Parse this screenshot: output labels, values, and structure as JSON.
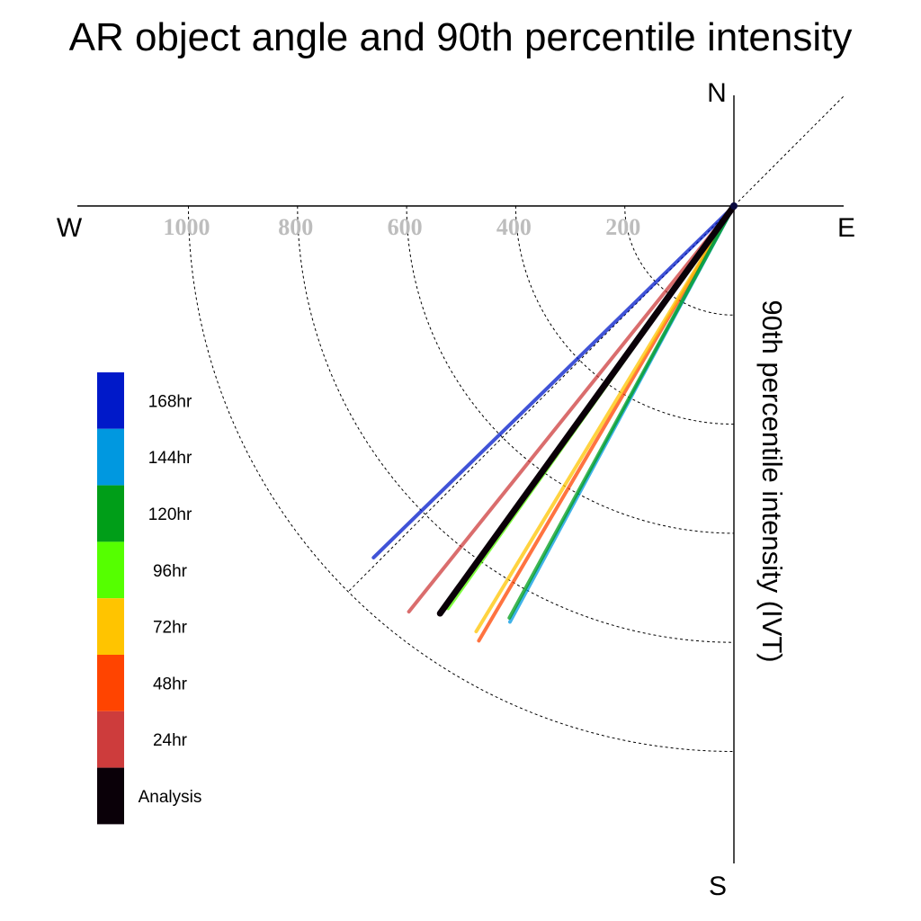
{
  "chart_data": {
    "type": "polar-vector",
    "title": "AR object angle and 90th percentile intensity",
    "radial_label": "90th percentile intensity (IVT)",
    "compass_labels": {
      "north": "N",
      "south": "S",
      "east": "E",
      "west": "W"
    },
    "radial_ticks": [
      200,
      400,
      600,
      800,
      1000
    ],
    "radial_max": 1200,
    "grid": true,
    "series": [
      {
        "name": "168hr",
        "color": "#0019c9",
        "intensity": 923,
        "angle_deg": 225.7
      },
      {
        "name": "144hr",
        "color": "#0098e0",
        "intensity": 866,
        "angle_deg": 208.3
      },
      {
        "name": "120hr",
        "color": "#009e18",
        "intensity": 860,
        "angle_deg": 208.6
      },
      {
        "name": "96hr",
        "color": "#55ff00",
        "intensity": 905,
        "angle_deg": 215.4
      },
      {
        "name": "72hr",
        "color": "#ffc400",
        "intensity": 912,
        "angle_deg": 211.2
      },
      {
        "name": "48hr",
        "color": "#ff4400",
        "intensity": 924,
        "angle_deg": 210.4
      },
      {
        "name": "24hr",
        "color": "#cd3c3c",
        "intensity": 953,
        "angle_deg": 218.7
      },
      {
        "name": "Analysis",
        "color": "#0a0008",
        "intensity": 921,
        "angle_deg": 215.8
      }
    ]
  }
}
